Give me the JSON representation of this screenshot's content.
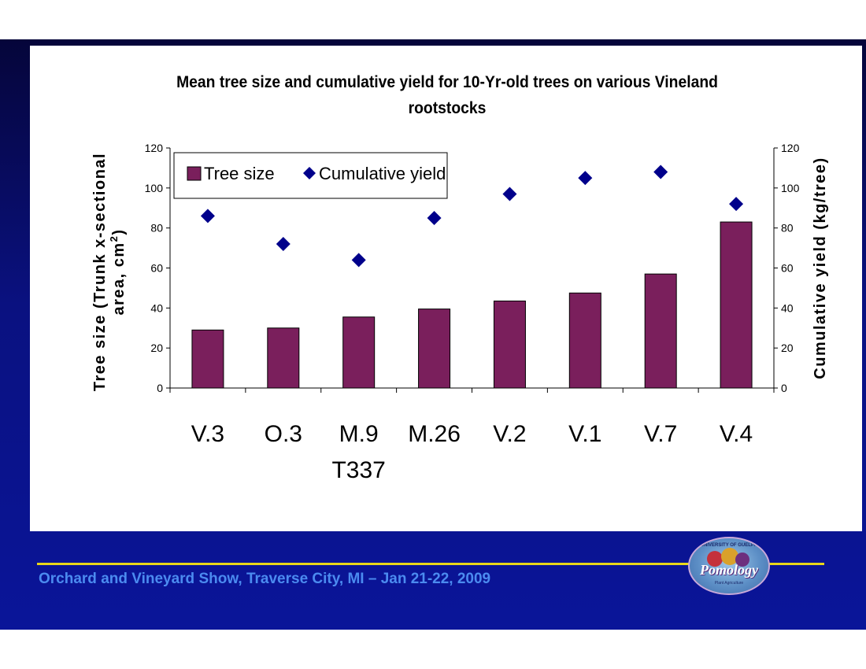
{
  "slide": {
    "footer_text": "Orchard and Vineyard Show, Traverse City, MI – Jan 21-22, 2009",
    "logo": {
      "top_text": "UNIVERSITY OF GUELPH",
      "word": "Pomology",
      "sub_text": "Plant Agriculture"
    },
    "colors": {
      "background": "#0a1599",
      "footer_line": "#e8d61a",
      "footer_text": "#4b8bf0",
      "bar": "#7a1f5c",
      "marker": "#00008b"
    }
  },
  "chart_data": {
    "type": "bar",
    "title": "Mean tree size and cumulative yield for 10-Yr-old trees on various Vineland rootstocks",
    "categories": [
      "V.3",
      "O.3",
      "M.9 T337",
      "M.26",
      "V.2",
      "V.1",
      "V.7",
      "V.4"
    ],
    "category_lines": [
      [
        "V.3"
      ],
      [
        "O.3"
      ],
      [
        "M.9",
        "T337"
      ],
      [
        "M.26"
      ],
      [
        "V.2"
      ],
      [
        "V.1"
      ],
      [
        "V.7"
      ],
      [
        "V.4"
      ]
    ],
    "series": [
      {
        "name": "Tree size",
        "type": "bar",
        "axis": "left",
        "values": [
          29,
          30,
          35.5,
          39.5,
          43.5,
          47.5,
          57,
          83
        ]
      },
      {
        "name": "Cumulative yield",
        "type": "scatter",
        "axis": "right",
        "marker": "diamond",
        "values": [
          86,
          72,
          64,
          85,
          97,
          105,
          108,
          92
        ]
      }
    ],
    "ylabel_left": [
      "Tree size (Trunk x-sectional",
      "area, cm",
      "2",
      ")"
    ],
    "ylabel_right": "Cumulative yield (kg/tree)",
    "ylim": [
      0,
      120
    ],
    "yticks": [
      0,
      20,
      40,
      60,
      80,
      100,
      120
    ],
    "legend": {
      "position": "top-left",
      "labels": [
        "Tree size",
        "Cumulative yield"
      ]
    },
    "grid": false
  }
}
